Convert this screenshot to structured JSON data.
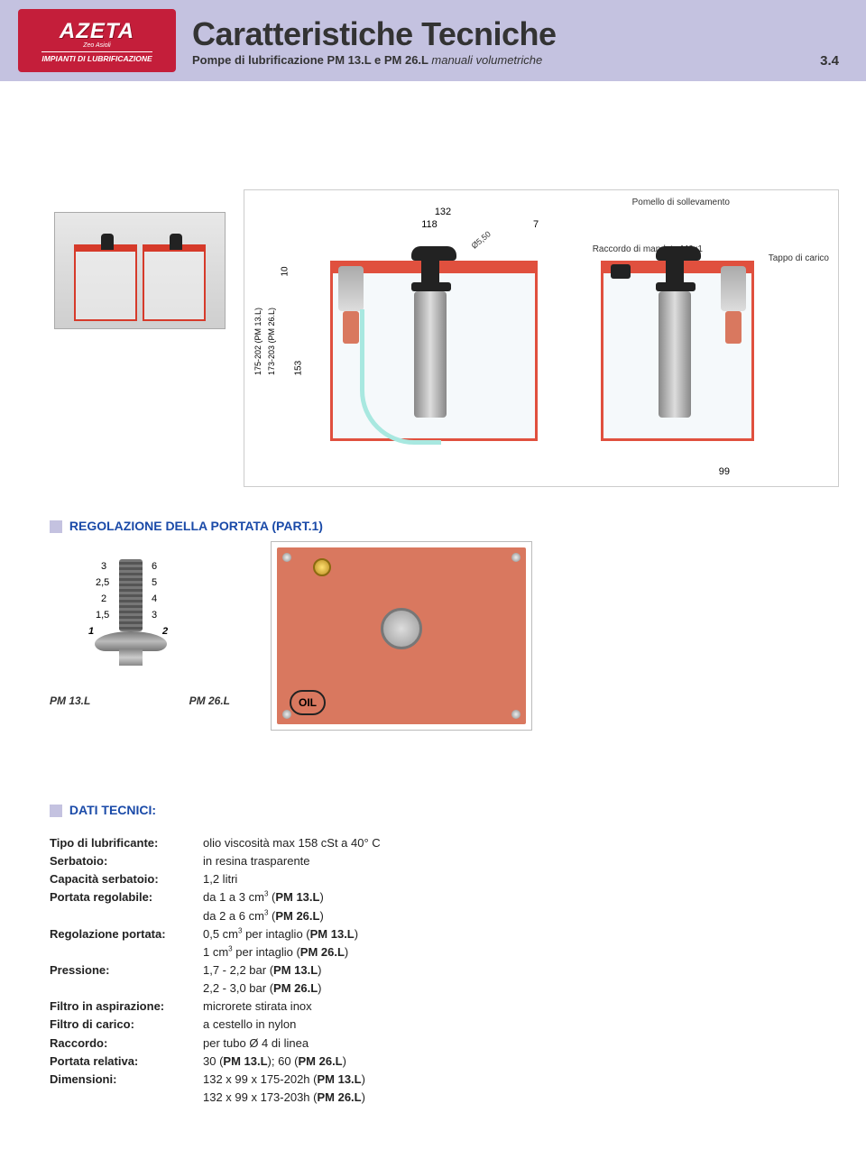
{
  "header": {
    "logo_main": "AZETA",
    "logo_sub": "Zeo Asioli",
    "logo_tag": "IMPIANTI DI LUBRIFICAZIONE",
    "title": "Caratteristiche Tecniche",
    "subtitle_bold": "Pompe di lubrificazione PM 13.L e PM 26.L",
    "subtitle_ital": "manuali volumetriche"
  },
  "drawing": {
    "dim_132": "132",
    "dim_118": "118",
    "dim_7": "7",
    "dim_10": "10",
    "dim_153": "153",
    "dim_99": "99",
    "dim_diag": "Ø5,50",
    "dim_h1": "175-202 (PM 13.L)",
    "dim_h2": "173-203 (PM 26.L)",
    "label_pomello": "Pomello di sollevamento",
    "label_raccordo": "Raccordo di mandata M6x1",
    "label_tappo": "Tappo di carico"
  },
  "regolazione": {
    "heading": "REGOLAZIONE DELLA PORTATA (PART.1)",
    "scale_left": [
      "3",
      "2,5",
      "2",
      "1,5",
      "1"
    ],
    "scale_right": [
      "6",
      "5",
      "4",
      "3",
      "2"
    ],
    "label_left": "PM 13.L",
    "label_right": "PM 26.L",
    "oil_badge": "OIL"
  },
  "dati": {
    "heading": "DATI TECNICI:",
    "rows": [
      {
        "k": "Tipo di lubrificante:",
        "v": "olio viscosità max 158 cSt a 40° C"
      },
      {
        "k": "Serbatoio:",
        "v": "in resina trasparente"
      },
      {
        "k": "Capacità serbatoio:",
        "v": "1,2 litri"
      },
      {
        "k": "Portata regolabile:",
        "v": "da 1 a 3 cm³ (PM 13.L)"
      },
      {
        "k": "",
        "v": "da 2 a 6 cm³ (PM 26.L)"
      },
      {
        "k": "Regolazione portata:",
        "v": "0,5 cm³ per intaglio (PM 13.L)"
      },
      {
        "k": "",
        "v": "1 cm³ per intaglio (PM 26.L)"
      },
      {
        "k": "Pressione:",
        "v": "1,7 - 2,2 bar (PM 13.L)"
      },
      {
        "k": "",
        "v": "2,2 - 3,0 bar (PM 26.L)"
      },
      {
        "k": "Filtro in aspirazione:",
        "v": "microrete stirata inox"
      },
      {
        "k": "Filtro di carico:",
        "v": "a cestello in nylon"
      },
      {
        "k": "Raccordo:",
        "v": "per tubo Ø 4 di linea"
      },
      {
        "k": "Portata relativa:",
        "v": "30 (PM 13.L); 60 (PM 26.L)"
      },
      {
        "k": "Dimensioni:",
        "v": "132 x 99 x 175-202h (PM 13.L)"
      },
      {
        "k": "",
        "v": "132 x 99 x 173-203h (PM 26.L)"
      }
    ]
  },
  "page_number": "3.4",
  "colors": {
    "header_bg": "#c4c2e0",
    "brand_red": "#c41e3a",
    "pump_red": "#d9785f",
    "heading_blue": "#1a4aa8",
    "hose": "#a8e8e0"
  }
}
